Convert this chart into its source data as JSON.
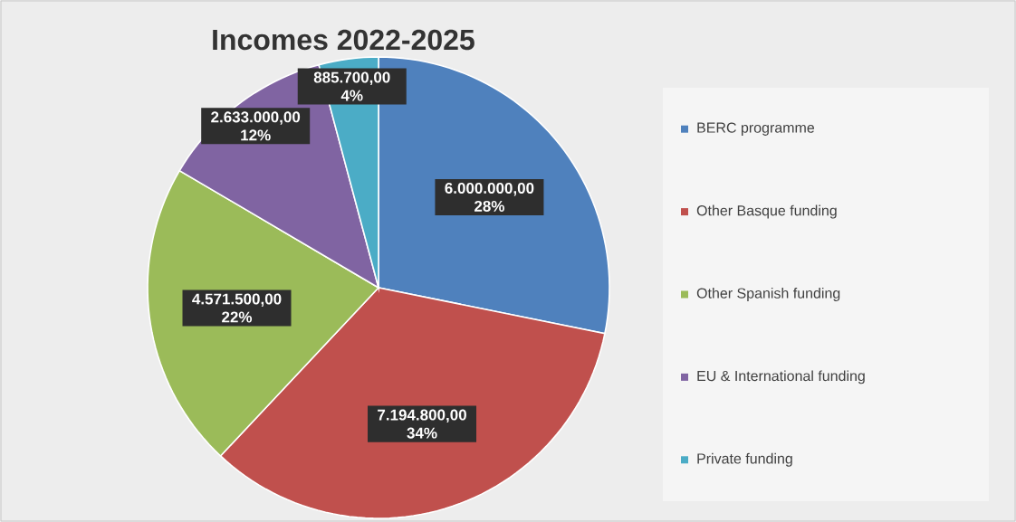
{
  "chart_data": {
    "type": "pie",
    "title": "Incomes 2022-2025",
    "categories": [
      "BERC programme",
      "Other Basque funding",
      "Other Spanish funding",
      "EU & International funding",
      "Private funding"
    ],
    "values": [
      6000000,
      7194800,
      4571500,
      2633000,
      885700
    ],
    "colors": [
      "#4f81bd",
      "#c0504d",
      "#9bbb59",
      "#8064a2",
      "#4bacc6"
    ],
    "value_labels": [
      "6.000.000,00 28%",
      "7.194.800,00 34%",
      "4.571.500,00 22%",
      "2.633.000,00 12%",
      "885.700,00 4%"
    ],
    "legend": "right"
  }
}
